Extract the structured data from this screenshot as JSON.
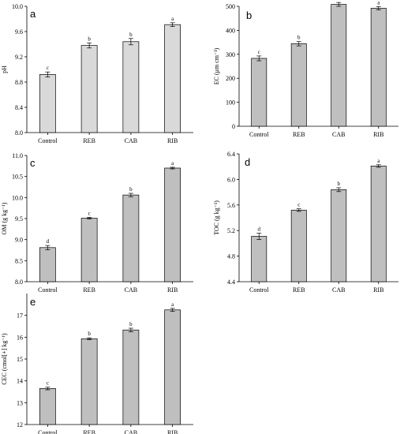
{
  "chart_data": [
    {
      "panel_label": "a",
      "type": "bar",
      "categories": [
        "Control",
        "REB",
        "CAB",
        "RIB"
      ],
      "values": [
        8.92,
        9.38,
        9.44,
        9.71
      ],
      "errors": [
        0.04,
        0.04,
        0.05,
        0.03
      ],
      "significance_letters": [
        "c",
        "b",
        "b",
        "a"
      ],
      "ylabel": "pH",
      "ylim": [
        8.0,
        10.0
      ],
      "yticks": [
        "8.0",
        "8.4",
        "8.8",
        "9.2",
        "9.6",
        "10.0"
      ],
      "bar_color": "#d9d9d9"
    },
    {
      "panel_label": "b",
      "type": "bar",
      "categories": [
        "Control",
        "REB",
        "CAB",
        "RIB"
      ],
      "values": [
        283,
        344,
        508,
        492
      ],
      "errors": [
        10,
        9,
        8,
        7
      ],
      "significance_letters": [
        "c",
        "b",
        "a",
        "a"
      ],
      "ylabel": "EC (μm cm⁻¹)",
      "ylim": [
        0,
        500
      ],
      "yticks": [
        "0",
        "100",
        "200",
        "300",
        "400",
        "500"
      ],
      "bar_color": "#bfbfbf"
    },
    {
      "panel_label": "c",
      "type": "bar",
      "categories": [
        "Control",
        "REB",
        "CAB",
        "RIB"
      ],
      "values": [
        8.81,
        9.51,
        10.06,
        10.7
      ],
      "errors": [
        0.05,
        0.02,
        0.04,
        0.02
      ],
      "significance_letters": [
        "d",
        "c",
        "b",
        "a"
      ],
      "ylabel": "OM (g kg⁻¹)",
      "ylim": [
        8.0,
        11.0
      ],
      "yticks": [
        "8.0",
        "8.5",
        "9.0",
        "9.5",
        "10.0",
        "10.5",
        "11.0"
      ],
      "bar_color": "#bfbfbf"
    },
    {
      "panel_label": "d",
      "type": "bar",
      "categories": [
        "Control",
        "REB",
        "CAB",
        "RIB"
      ],
      "values": [
        5.11,
        5.52,
        5.84,
        6.21
      ],
      "errors": [
        0.05,
        0.02,
        0.03,
        0.02
      ],
      "significance_letters": [
        "d",
        "c",
        "b",
        "a"
      ],
      "ylabel": "TOC (g kg⁻¹)",
      "ylim": [
        4.4,
        6.4
      ],
      "yticks": [
        "4.4",
        "4.8",
        "5.2",
        "5.6",
        "6.0",
        "6.4"
      ],
      "bar_color": "#bfbfbf"
    },
    {
      "panel_label": "e",
      "type": "bar",
      "categories": [
        "Control",
        "REB",
        "CAB",
        "RIB"
      ],
      "values": [
        13.65,
        15.93,
        16.33,
        17.25
      ],
      "errors": [
        0.06,
        0.04,
        0.08,
        0.07
      ],
      "significance_letters": [
        "c",
        "b",
        "b",
        "a"
      ],
      "ylabel": "CEC (cmol[+] kg⁻¹)",
      "ylim": [
        12,
        18
      ],
      "yticks": [
        "12",
        "13",
        "14",
        "15",
        "16",
        "17"
      ],
      "bar_color": "#bfbfbf"
    }
  ]
}
